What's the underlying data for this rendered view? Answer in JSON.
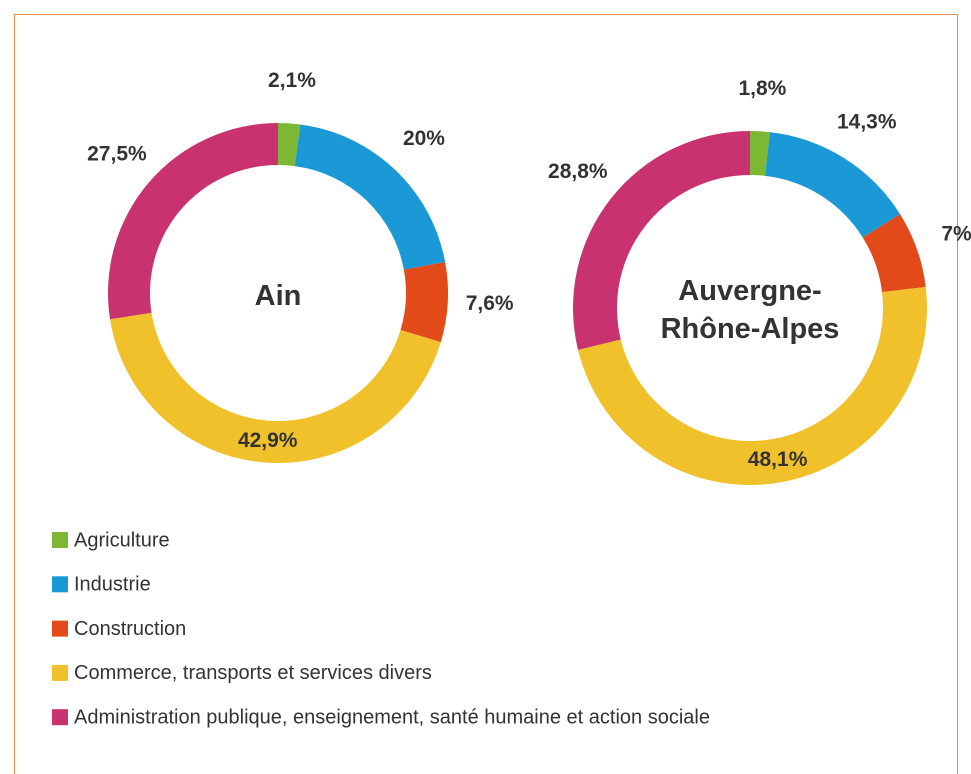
{
  "chart_data": [
    {
      "type": "pie",
      "title": "Ain",
      "categories": [
        "Agriculture",
        "Industrie",
        "Construction",
        "Commerce, transports et services divers",
        "Administration publique, enseignement, santé humaine et action sociale"
      ],
      "values": [
        2.1,
        20,
        7.6,
        42.9,
        27.5
      ],
      "value_labels": [
        "2,1%",
        "20%",
        "7,6%",
        "42,9%",
        "27,5%"
      ],
      "colors": [
        "#7cb833",
        "#1b99d6",
        "#e24a1a",
        "#f0c12b",
        "#c8326e"
      ]
    },
    {
      "type": "pie",
      "title": "Auvergne-Rhône-Alpes",
      "categories": [
        "Agriculture",
        "Industrie",
        "Construction",
        "Commerce, transports et services divers",
        "Administration publique, enseignement, santé humaine et action sociale"
      ],
      "values": [
        1.8,
        14.3,
        7,
        48.1,
        28.8
      ],
      "value_labels": [
        "1,8%",
        "14,3%",
        "7%",
        "48,1%",
        "28,8%"
      ],
      "colors": [
        "#7cb833",
        "#1b99d6",
        "#e24a1a",
        "#f0c12b",
        "#c8326e"
      ]
    }
  ]
}
